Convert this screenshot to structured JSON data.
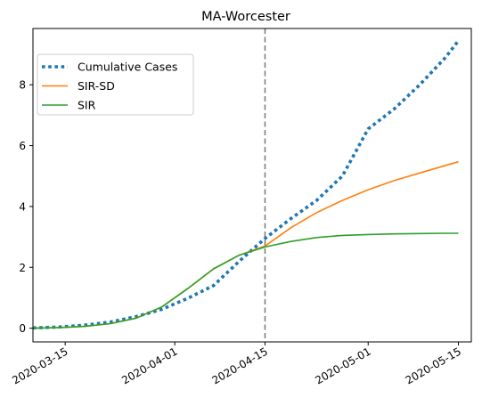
{
  "chart_data": {
    "type": "line",
    "title": "MA-Worcester",
    "xlabel": "",
    "ylabel": "",
    "x_axis_type": "date",
    "xlim": [
      "2020-03-10",
      "2020-05-17"
    ],
    "ylim": [
      -0.45,
      9.85
    ],
    "x_ticks": [
      "2020-03-15",
      "2020-04-01",
      "2020-04-15",
      "2020-05-01",
      "2020-05-15"
    ],
    "y_ticks": [
      0,
      2,
      4,
      6,
      8
    ],
    "vertical_marker": {
      "x": "2020-04-15",
      "style": "dashed",
      "color": "#7f7f7f"
    },
    "legend_position": "upper left",
    "grid": false,
    "series": [
      {
        "name": "Cumulative Cases",
        "style": "dotted",
        "color": "#1f77b4",
        "x": [
          "2020-03-10",
          "2020-03-14",
          "2020-03-18",
          "2020-03-22",
          "2020-03-26",
          "2020-03-30",
          "2020-04-03",
          "2020-04-07",
          "2020-04-11",
          "2020-04-15",
          "2020-04-19",
          "2020-04-23",
          "2020-04-27",
          "2020-05-01",
          "2020-05-05",
          "2020-05-09",
          "2020-05-13",
          "2020-05-15"
        ],
        "values": [
          0.01,
          0.04,
          0.1,
          0.2,
          0.38,
          0.62,
          0.98,
          1.4,
          2.2,
          2.95,
          3.6,
          4.2,
          5.0,
          6.55,
          7.2,
          8.0,
          8.9,
          9.45
        ]
      },
      {
        "name": "SIR-SD",
        "style": "solid",
        "color": "#ff7f0e",
        "x": [
          "2020-03-10",
          "2020-03-14",
          "2020-03-18",
          "2020-03-22",
          "2020-03-26",
          "2020-03-30",
          "2020-04-03",
          "2020-04-07",
          "2020-04-11",
          "2020-04-15",
          "2020-04-19",
          "2020-04-23",
          "2020-04-27",
          "2020-05-01",
          "2020-05-05",
          "2020-05-09",
          "2020-05-13",
          "2020-05-15"
        ],
        "values": [
          0.0,
          0.02,
          0.06,
          0.15,
          0.33,
          0.7,
          1.3,
          1.95,
          2.4,
          2.7,
          3.3,
          3.8,
          4.2,
          4.55,
          4.85,
          5.1,
          5.35,
          5.47
        ]
      },
      {
        "name": "SIR",
        "style": "solid",
        "color": "#2ca02c",
        "x": [
          "2020-03-10",
          "2020-03-14",
          "2020-03-18",
          "2020-03-22",
          "2020-03-26",
          "2020-03-30",
          "2020-04-03",
          "2020-04-07",
          "2020-04-11",
          "2020-04-15",
          "2020-04-19",
          "2020-04-23",
          "2020-04-27",
          "2020-05-01",
          "2020-05-05",
          "2020-05-09",
          "2020-05-13",
          "2020-05-15"
        ],
        "values": [
          0.0,
          0.02,
          0.06,
          0.15,
          0.33,
          0.7,
          1.3,
          1.95,
          2.4,
          2.67,
          2.85,
          2.98,
          3.05,
          3.08,
          3.1,
          3.11,
          3.12,
          3.12
        ]
      }
    ]
  }
}
